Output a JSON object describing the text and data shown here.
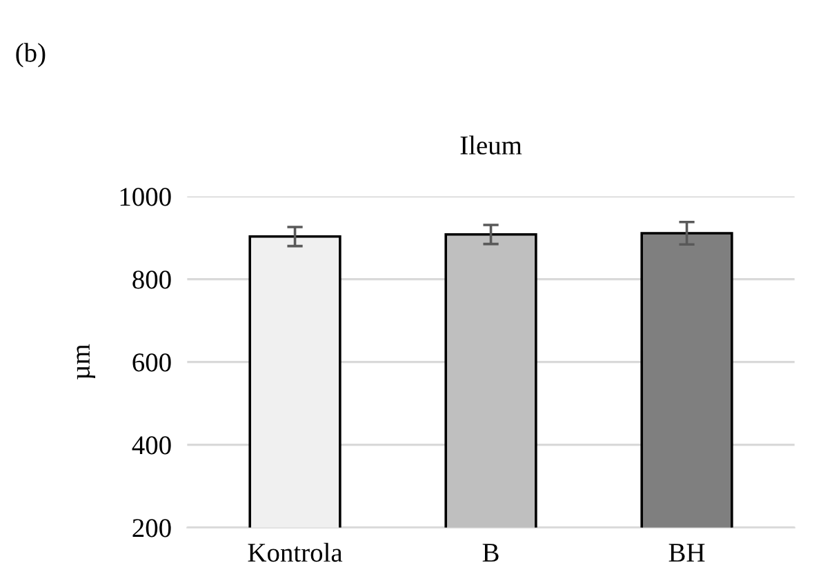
{
  "chart_data": {
    "type": "bar",
    "title": "Ileum",
    "ylabel": "µm",
    "categories": [
      "Kontrola",
      "B",
      "BH"
    ],
    "values": [
      903,
      908,
      911
    ],
    "errors": [
      23,
      23,
      27
    ],
    "colors": [
      "#f0f0f0",
      "#bfbfbf",
      "#7f7f7f"
    ],
    "ylim": [
      200,
      1000
    ],
    "yticks": [
      200,
      400,
      600,
      800,
      1000
    ],
    "grid": "y",
    "annotations": [
      "(b)"
    ]
  }
}
